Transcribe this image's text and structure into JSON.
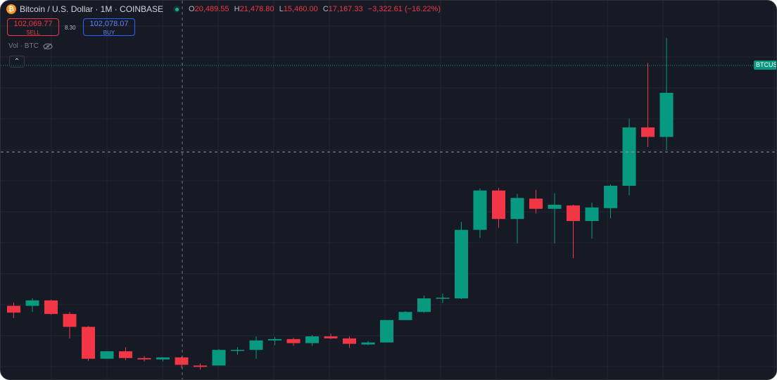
{
  "legend": {
    "symbol": "Bitcoin / U.S. Dollar · 1M · COINBASE",
    "o_key": "O",
    "o_val": "20,489.55",
    "h_key": "H",
    "h_val": "21,478.80",
    "l_key": "L",
    "l_val": "15,460.00",
    "c_key": "C",
    "c_val": "17,167.33",
    "change": "−3,322.61 (−16.22%)"
  },
  "trade": {
    "sell_price": "102,069.77",
    "sell_label": "SELL",
    "spread": "8.30",
    "buy_price": "102,078.07",
    "buy_label": "BUY"
  },
  "volume_label": "Vol · BTC",
  "collapse_glyph": "⌃",
  "price_tag": "BTCUSD",
  "colors": {
    "up": "#089981",
    "down": "#f23645",
    "background": "#161a25",
    "grid": "#232632"
  },
  "chart_data": {
    "type": "candlestick",
    "candles": [
      {
        "o": 12000,
        "h": 12500,
        "l": 10200,
        "c": 11000
      },
      {
        "o": 12000,
        "h": 13100,
        "l": 11100,
        "c": 12800
      },
      {
        "o": 12800,
        "h": 12900,
        "l": 10700,
        "c": 10800
      },
      {
        "o": 10800,
        "h": 11100,
        "l": 7200,
        "c": 8900
      },
      {
        "o": 8900,
        "h": 9000,
        "l": 3900,
        "c": 4200
      },
      {
        "o": 4200,
        "h": 5300,
        "l": 4200,
        "c": 5300
      },
      {
        "o": 5300,
        "h": 5900,
        "l": 4000,
        "c": 4300
      },
      {
        "o": 4300,
        "h": 4600,
        "l": 3800,
        "c": 4100
      },
      {
        "o": 4100,
        "h": 4400,
        "l": 3800,
        "c": 4400
      },
      {
        "o": 4400,
        "h": 4500,
        "l": 2900,
        "c": 3300
      },
      {
        "o": 3200,
        "h": 3500,
        "l": 2600,
        "c": 3000
      },
      {
        "o": 3200,
        "h": 5600,
        "l": 3200,
        "c": 5500
      },
      {
        "o": 5500,
        "h": 5900,
        "l": 4800,
        "c": 5500
      },
      {
        "o": 5500,
        "h": 7500,
        "l": 4200,
        "c": 6900
      },
      {
        "o": 6900,
        "h": 7400,
        "l": 6200,
        "c": 7100
      },
      {
        "o": 7100,
        "h": 7300,
        "l": 6100,
        "c": 6500
      },
      {
        "o": 6500,
        "h": 7700,
        "l": 6100,
        "c": 7500
      },
      {
        "o": 7500,
        "h": 7900,
        "l": 7100,
        "c": 7200
      },
      {
        "o": 7200,
        "h": 7500,
        "l": 5800,
        "c": 6400
      },
      {
        "o": 6300,
        "h": 6800,
        "l": 6200,
        "c": 6600
      },
      {
        "o": 6600,
        "h": 9900,
        "l": 6600,
        "c": 9900
      },
      {
        "o": 9900,
        "h": 11200,
        "l": 9900,
        "c": 11100
      },
      {
        "o": 11100,
        "h": 13500,
        "l": 11000,
        "c": 13100
      },
      {
        "o": 13100,
        "h": 13800,
        "l": 12400,
        "c": 13200
      },
      {
        "o": 13100,
        "h": 24400,
        "l": 13000,
        "c": 23200
      },
      {
        "o": 23200,
        "h": 29300,
        "l": 22000,
        "c": 29000
      },
      {
        "o": 29000,
        "h": 29400,
        "l": 23500,
        "c": 24800
      },
      {
        "o": 24800,
        "h": 28500,
        "l": 21200,
        "c": 27900
      },
      {
        "o": 27800,
        "h": 29100,
        "l": 25600,
        "c": 26300
      },
      {
        "o": 26300,
        "h": 28600,
        "l": 21200,
        "c": 26900
      },
      {
        "o": 26800,
        "h": 26900,
        "l": 19000,
        "c": 24500
      },
      {
        "o": 24500,
        "h": 27200,
        "l": 21900,
        "c": 26500
      },
      {
        "o": 26400,
        "h": 29900,
        "l": 24900,
        "c": 29700
      },
      {
        "o": 29700,
        "h": 39600,
        "l": 28300,
        "c": 38300
      },
      {
        "o": 38300,
        "h": 47800,
        "l": 35400,
        "c": 36900
      },
      {
        "o": 36900,
        "h": 51500,
        "l": 34900,
        "c": 43400
      }
    ],
    "ylim": [
      2000,
      52000
    ],
    "grid": true,
    "crosshair": true
  }
}
